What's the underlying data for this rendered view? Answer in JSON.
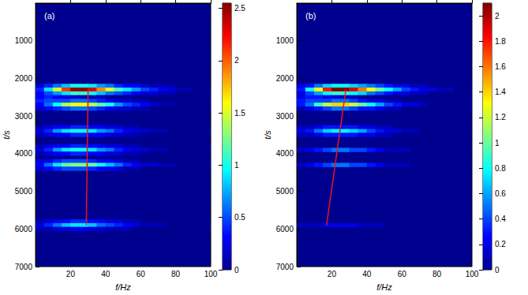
{
  "chart_data": [
    {
      "type": "heatmap",
      "panel_label": "(a)",
      "x_label": "f/Hz",
      "y_label": "t/s",
      "xlim": [
        0,
        100
      ],
      "xticks": [
        20,
        40,
        60,
        80,
        100
      ],
      "ylim": [
        0,
        7000
      ],
      "yticks": [
        1000,
        2000,
        3000,
        4000,
        5000,
        6000,
        7000
      ],
      "heatmap": {
        "f": [
          2.5,
          7.5,
          12.5,
          17.5,
          22.5,
          27.5,
          32.5,
          37.5,
          42.5,
          47.5,
          52.5,
          57.5,
          62.5,
          67.5,
          72.5,
          77.5,
          82.5,
          87.5,
          92.5,
          97.5
        ],
        "t": [
          2200,
          2300,
          2400,
          2500,
          2600,
          2700,
          2800,
          3300,
          3400,
          3500,
          3800,
          3900,
          4000,
          4200,
          4300,
          4400,
          5800,
          5900,
          6000
        ],
        "z": [
          [
            0.2,
            0.4,
            0.6,
            0.8,
            1.0,
            1.0,
            0.9,
            0.7,
            0.6,
            0.4,
            0.3,
            0.3,
            0.2,
            0.1,
            0.1,
            0.1,
            0,
            0,
            0,
            0
          ],
          [
            0.4,
            0.9,
            1.5,
            2.1,
            2.5,
            2.5,
            2.3,
            1.9,
            1.5,
            1.1,
            0.9,
            0.7,
            0.5,
            0.4,
            0.3,
            0.2,
            0.1,
            0.1,
            0,
            0
          ],
          [
            0.3,
            0.5,
            0.7,
            0.9,
            1.1,
            1.1,
            1.0,
            0.8,
            0.6,
            0.5,
            0.4,
            0.3,
            0.2,
            0.2,
            0.1,
            0.1,
            0,
            0,
            0,
            0
          ],
          [
            0.3,
            0.4,
            0.3,
            0.2,
            0.2,
            0.1,
            0.1,
            0.1,
            0,
            0,
            0,
            0,
            0,
            0,
            0,
            0,
            0,
            0,
            0,
            0
          ],
          [
            0.4,
            0.5,
            0.5,
            0.5,
            0.6,
            0.6,
            0.5,
            0.4,
            0.3,
            0.2,
            0.2,
            0.1,
            0.1,
            0,
            0,
            0,
            0,
            0,
            0,
            0
          ],
          [
            0.3,
            0.6,
            1.0,
            1.4,
            1.6,
            1.6,
            1.4,
            1.2,
            1.0,
            0.7,
            0.5,
            0.4,
            0.3,
            0.2,
            0.1,
            0.1,
            0,
            0,
            0,
            0
          ],
          [
            0.2,
            0.3,
            0.4,
            0.5,
            0.6,
            0.6,
            0.5,
            0.4,
            0.3,
            0.2,
            0.2,
            0.1,
            0.1,
            0,
            0,
            0,
            0,
            0,
            0,
            0
          ],
          [
            0.1,
            0.2,
            0.3,
            0.3,
            0.4,
            0.4,
            0.3,
            0.3,
            0.2,
            0.2,
            0.1,
            0.1,
            0,
            0,
            0,
            0,
            0,
            0,
            0,
            0
          ],
          [
            0.2,
            0.4,
            0.7,
            0.9,
            1.0,
            1.0,
            0.9,
            0.7,
            0.6,
            0.4,
            0.3,
            0.2,
            0.2,
            0.1,
            0.1,
            0,
            0,
            0,
            0,
            0
          ],
          [
            0.1,
            0.2,
            0.3,
            0.3,
            0.4,
            0.4,
            0.3,
            0.3,
            0.2,
            0.2,
            0.1,
            0.1,
            0,
            0,
            0,
            0,
            0,
            0,
            0,
            0
          ],
          [
            0.1,
            0.2,
            0.3,
            0.3,
            0.4,
            0.4,
            0.3,
            0.3,
            0.2,
            0.2,
            0.1,
            0.1,
            0,
            0,
            0,
            0,
            0,
            0,
            0,
            0
          ],
          [
            0.2,
            0.4,
            0.7,
            0.9,
            1.0,
            1.0,
            0.9,
            0.7,
            0.6,
            0.4,
            0.3,
            0.2,
            0.2,
            0.1,
            0.1,
            0,
            0,
            0,
            0,
            0
          ],
          [
            0.1,
            0.2,
            0.3,
            0.3,
            0.4,
            0.4,
            0.3,
            0.3,
            0.2,
            0.2,
            0.1,
            0.1,
            0,
            0,
            0,
            0,
            0,
            0,
            0,
            0
          ],
          [
            0.2,
            0.3,
            0.4,
            0.5,
            0.5,
            0.5,
            0.4,
            0.3,
            0.3,
            0.2,
            0.1,
            0.1,
            0,
            0,
            0,
            0,
            0,
            0,
            0,
            0
          ],
          [
            0.3,
            0.6,
            0.9,
            1.2,
            1.3,
            1.3,
            1.2,
            1.0,
            0.8,
            0.6,
            0.4,
            0.3,
            0.2,
            0.2,
            0.1,
            0.1,
            0,
            0,
            0,
            0
          ],
          [
            0.2,
            0.3,
            0.4,
            0.5,
            0.5,
            0.5,
            0.4,
            0.3,
            0.3,
            0.2,
            0.1,
            0.1,
            0,
            0,
            0,
            0,
            0,
            0,
            0,
            0
          ],
          [
            0.1,
            0.2,
            0.3,
            0.3,
            0.4,
            0.4,
            0.3,
            0.3,
            0.2,
            0.2,
            0.1,
            0.1,
            0,
            0,
            0,
            0,
            0,
            0,
            0,
            0
          ],
          [
            0.2,
            0.4,
            0.6,
            0.8,
            0.9,
            0.9,
            0.8,
            0.6,
            0.5,
            0.4,
            0.3,
            0.2,
            0.1,
            0.1,
            0.1,
            0,
            0,
            0,
            0,
            0
          ],
          [
            0.1,
            0.1,
            0.2,
            0.2,
            0.3,
            0.3,
            0.2,
            0.2,
            0.1,
            0.1,
            0.1,
            0,
            0,
            0,
            0,
            0,
            0,
            0,
            0,
            0
          ]
        ]
      },
      "colorbar": {
        "range": [
          0,
          2.55
        ],
        "ticks": [
          0,
          0.5,
          1,
          1.5,
          2,
          2.5
        ]
      },
      "line": {
        "x": [
          30,
          29
        ],
        "y": [
          2300,
          5900
        ],
        "color": "#e8141c"
      }
    },
    {
      "type": "heatmap",
      "panel_label": "(b)",
      "x_label": "f/Hz",
      "y_label": "t/s",
      "xlim": [
        0,
        100
      ],
      "xticks": [
        20,
        40,
        60,
        80,
        100
      ],
      "ylim": [
        0,
        7000
      ],
      "yticks": [
        1000,
        2000,
        3000,
        4000,
        5000,
        6000,
        7000
      ],
      "heatmap": {
        "f": [
          2.5,
          7.5,
          12.5,
          17.5,
          22.5,
          27.5,
          32.5,
          37.5,
          42.5,
          47.5,
          52.5,
          57.5,
          62.5,
          67.5,
          72.5,
          77.5,
          82.5,
          87.5,
          92.5,
          97.5
        ],
        "t": [
          2200,
          2300,
          2400,
          2500,
          2600,
          2700,
          2800,
          3300,
          3400,
          3500,
          3900,
          4300,
          5900
        ],
        "z": [
          [
            0.2,
            0.3,
            0.5,
            0.7,
            0.8,
            0.8,
            0.7,
            0.6,
            0.5,
            0.4,
            0.3,
            0.2,
            0.2,
            0.1,
            0.1,
            0,
            0,
            0,
            0,
            0
          ],
          [
            0.3,
            0.8,
            1.3,
            1.8,
            2.1,
            2.1,
            1.9,
            1.6,
            1.3,
            1.0,
            0.8,
            0.6,
            0.4,
            0.3,
            0.2,
            0.2,
            0.1,
            0.1,
            0,
            0
          ],
          [
            0.2,
            0.4,
            0.6,
            0.8,
            0.9,
            0.9,
            0.8,
            0.7,
            0.5,
            0.4,
            0.3,
            0.2,
            0.2,
            0.1,
            0.1,
            0,
            0,
            0,
            0,
            0
          ],
          [
            0.2,
            0.3,
            0.3,
            0.2,
            0.2,
            0.1,
            0.1,
            0,
            0,
            0,
            0,
            0,
            0,
            0,
            0,
            0,
            0,
            0,
            0,
            0
          ],
          [
            0.3,
            0.4,
            0.4,
            0.4,
            0.5,
            0.5,
            0.4,
            0.3,
            0.2,
            0.2,
            0.1,
            0.1,
            0,
            0,
            0,
            0,
            0,
            0,
            0,
            0
          ],
          [
            0.3,
            0.5,
            0.9,
            1.2,
            1.4,
            1.4,
            1.2,
            1.0,
            0.8,
            0.6,
            0.4,
            0.3,
            0.2,
            0.2,
            0.1,
            0,
            0,
            0,
            0,
            0
          ],
          [
            0.1,
            0.2,
            0.3,
            0.4,
            0.5,
            0.5,
            0.4,
            0.3,
            0.3,
            0.2,
            0.1,
            0.1,
            0,
            0,
            0,
            0,
            0,
            0,
            0,
            0
          ],
          [
            0.1,
            0.1,
            0.2,
            0.3,
            0.3,
            0.3,
            0.3,
            0.2,
            0.2,
            0.1,
            0.1,
            0,
            0,
            0,
            0,
            0,
            0,
            0,
            0,
            0
          ],
          [
            0.2,
            0.3,
            0.5,
            0.7,
            0.8,
            0.8,
            0.7,
            0.6,
            0.4,
            0.3,
            0.2,
            0.2,
            0.1,
            0.1,
            0,
            0,
            0,
            0,
            0,
            0
          ],
          [
            0.1,
            0.1,
            0.2,
            0.3,
            0.3,
            0.3,
            0.3,
            0.2,
            0.2,
            0.1,
            0.1,
            0,
            0,
            0,
            0,
            0,
            0,
            0,
            0,
            0
          ],
          [
            0.1,
            0.2,
            0.3,
            0.4,
            0.5,
            0.5,
            0.4,
            0.4,
            0.3,
            0.2,
            0.1,
            0.1,
            0.1,
            0,
            0,
            0,
            0,
            0,
            0,
            0
          ],
          [
            0.1,
            0.2,
            0.3,
            0.4,
            0.5,
            0.5,
            0.4,
            0.4,
            0.3,
            0.2,
            0.1,
            0.1,
            0.1,
            0,
            0,
            0,
            0,
            0,
            0,
            0
          ],
          [
            0.1,
            0.1,
            0.1,
            0.2,
            0.2,
            0.2,
            0.2,
            0.1,
            0.1,
            0.1,
            0,
            0,
            0,
            0,
            0,
            0,
            0,
            0,
            0,
            0
          ]
        ]
      },
      "colorbar": {
        "range": [
          0,
          2.1
        ],
        "ticks": [
          0,
          0.2,
          0.4,
          0.6,
          0.8,
          1,
          1.2,
          1.4,
          1.6,
          1.8,
          2
        ]
      },
      "line": {
        "x": [
          28,
          17
        ],
        "y": [
          2300,
          5900
        ],
        "color": "#e8141c"
      }
    }
  ]
}
